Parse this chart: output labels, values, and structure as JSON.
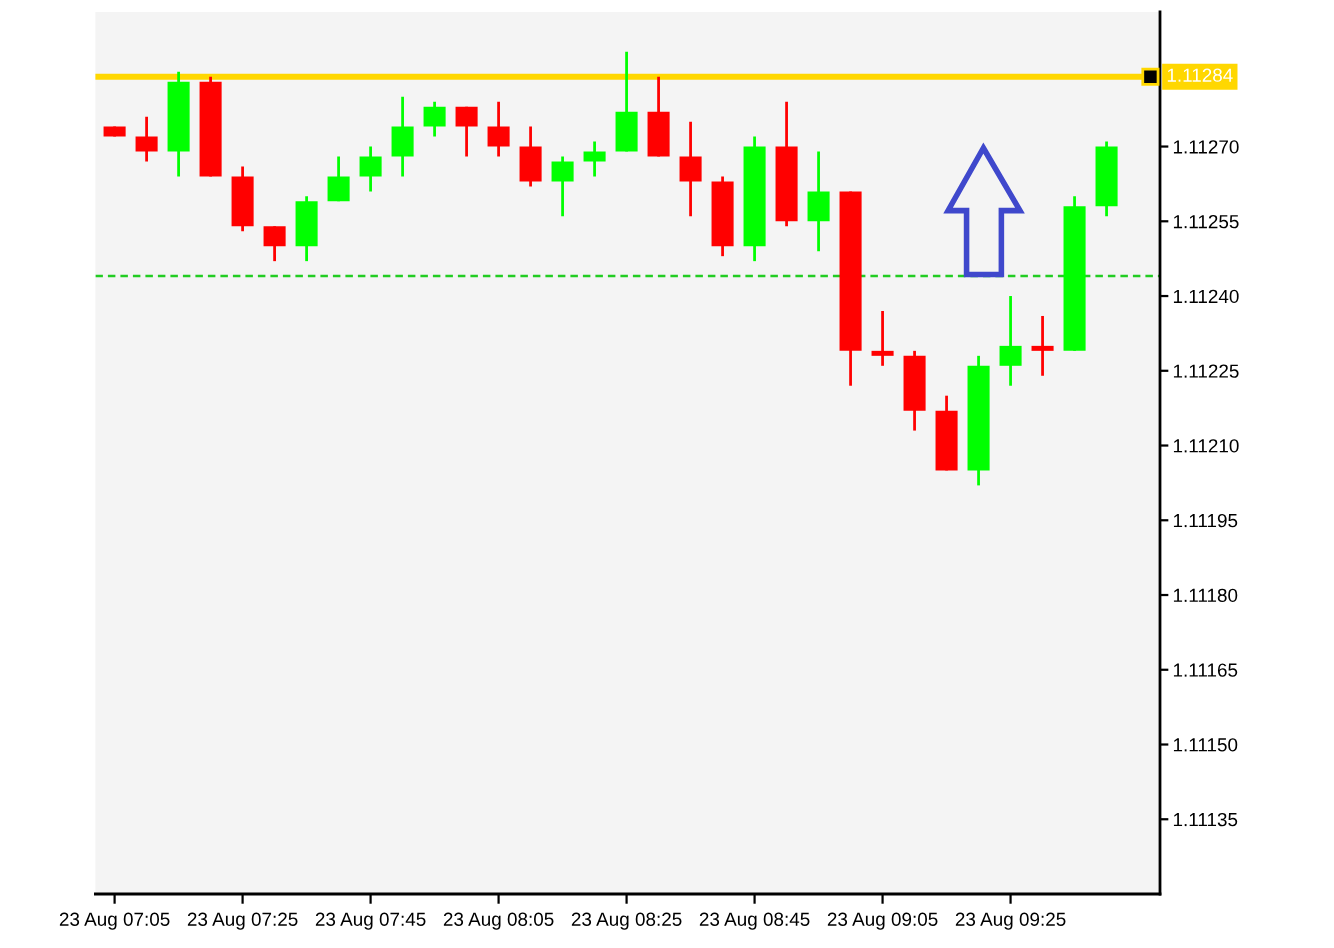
{
  "chart_data": {
    "type": "candlestick",
    "categories": [
      "23 Aug 07:05",
      null,
      null,
      null,
      "23 Aug 07:25",
      null,
      null,
      null,
      "23 Aug 07:45",
      null,
      null,
      null,
      "23 Aug 08:05",
      null,
      null,
      null,
      "23 Aug 08:25",
      null,
      null,
      null,
      "23 Aug 08:45",
      null,
      null,
      null,
      "23 Aug 09:05",
      null,
      null,
      null,
      "23 Aug 09:25",
      null,
      null,
      null
    ],
    "ohlc": [
      [
        1.11274,
        1.11274,
        1.11272,
        1.11272
      ],
      [
        1.11272,
        1.11276,
        1.11267,
        1.11269
      ],
      [
        1.11269,
        1.11285,
        1.11264,
        1.11283
      ],
      [
        1.11283,
        1.11284,
        1.11264,
        1.11264
      ],
      [
        1.11264,
        1.11266,
        1.11253,
        1.11254
      ],
      [
        1.11254,
        1.11254,
        1.11247,
        1.1125
      ],
      [
        1.1125,
        1.1126,
        1.11247,
        1.11259
      ],
      [
        1.11259,
        1.11268,
        1.11259,
        1.11264
      ],
      [
        1.11264,
        1.1127,
        1.11261,
        1.11268
      ],
      [
        1.11268,
        1.1128,
        1.11264,
        1.11274
      ],
      [
        1.11274,
        1.11279,
        1.11272,
        1.11278
      ],
      [
        1.11278,
        1.11278,
        1.11268,
        1.11274
      ],
      [
        1.11274,
        1.11279,
        1.11268,
        1.1127
      ],
      [
        1.1127,
        1.11274,
        1.11262,
        1.11263
      ],
      [
        1.11263,
        1.11268,
        1.11256,
        1.11267
      ],
      [
        1.11267,
        1.11271,
        1.11264,
        1.11269
      ],
      [
        1.11269,
        1.11289,
        1.11269,
        1.11277
      ],
      [
        1.11277,
        1.11284,
        1.11268,
        1.11268
      ],
      [
        1.11268,
        1.11275,
        1.11256,
        1.11263
      ],
      [
        1.11263,
        1.11264,
        1.11248,
        1.1125
      ],
      [
        1.1125,
        1.11272,
        1.11247,
        1.1127
      ],
      [
        1.1127,
        1.11279,
        1.11254,
        1.11255
      ],
      [
        1.11255,
        1.11269,
        1.11249,
        1.11261
      ],
      [
        1.11261,
        1.11261,
        1.11222,
        1.11229
      ],
      [
        1.11229,
        1.11237,
        1.11226,
        1.11228
      ],
      [
        1.11228,
        1.11229,
        1.11213,
        1.11217
      ],
      [
        1.11217,
        1.1122,
        1.11205,
        1.11205
      ],
      [
        1.11205,
        1.11228,
        1.11202,
        1.11226
      ],
      [
        1.11226,
        1.1124,
        1.11222,
        1.1123
      ],
      [
        1.1123,
        1.11236,
        1.11224,
        1.11229
      ],
      [
        1.11229,
        1.1126,
        1.11229,
        1.11258
      ],
      [
        1.11258,
        1.11271,
        1.11256,
        1.1127
      ]
    ],
    "colors": [
      "#ff0000",
      "#ff0000",
      "#00ff00",
      "#ff0000",
      "#ff0000",
      "#ff0000",
      "#00ff00",
      "#00ff00",
      "#00ff00",
      "#00ff00",
      "#00ff00",
      "#ff0000",
      "#ff0000",
      "#ff0000",
      "#00ff00",
      "#00ff00",
      "#00ff00",
      "#ff0000",
      "#ff0000",
      "#ff0000",
      "#00ff00",
      "#ff0000",
      "#00ff00",
      "#ff0000",
      "#ff0000",
      "#ff0000",
      "#ff0000",
      "#00ff00",
      "#00ff00",
      "#ff0000",
      "#00ff00",
      "#00ff00"
    ],
    "ylim": [
      1.1112,
      1.11297
    ],
    "yticks": [
      1.11135,
      {
        "value": 1.1115,
        "label": "1.11150"
      },
      1.11165,
      {
        "value": 1.1118,
        "label": "1.11180"
      },
      1.11195,
      {
        "value": 1.1121,
        "label": "1.11210"
      },
      1.11225,
      {
        "value": 1.1124,
        "label": "1.11240"
      },
      1.11255,
      {
        "value": 1.1127,
        "label": "1.11270"
      }
    ],
    "ref_lines": [
      {
        "axis": "y",
        "value": 1.11284,
        "label": "1.11284",
        "color": "#ffd700",
        "line_style": "solid"
      },
      {
        "axis": "y",
        "value": 1.11244,
        "color": "#22cc22",
        "line_style": "dashed"
      }
    ]
  }
}
